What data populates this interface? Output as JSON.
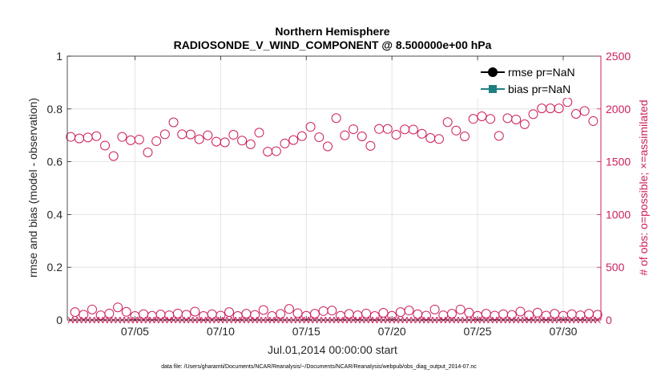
{
  "chart_data": {
    "type": "scatter",
    "title": "Northern Hemisphere",
    "subtitle": "RADIOSONDE_V_WIND_COMPONENT @ 8.500000e+00 hPa",
    "xlabel": "Jul.01,2014 00:00:00 start",
    "ylabel_left": "rmse and bias (model - observation)",
    "ylabel_right": "# of obs: o=possible; ×=assimilated",
    "footer": "data file: /Users/gharamti/Documents/NCAR/Reanalysis/~/Documents/NCAR/Reanalysis/webpub/obs_diag_output_2014-07.nc",
    "xlim": [
      0.8,
      31.95
    ],
    "ylim_left": [
      0,
      1
    ],
    "ylim_right": [
      0,
      2500
    ],
    "x_ticks": [
      4.75,
      9.75,
      14.75,
      19.75,
      24.75,
      29.75
    ],
    "x_tick_labels": [
      "07/05",
      "07/10",
      "07/15",
      "07/20",
      "07/25",
      "07/30"
    ],
    "y_ticks_left": [
      0,
      0.2,
      0.4,
      0.6,
      0.8,
      1
    ],
    "y_tick_labels_left": [
      "0",
      "0.2",
      "0.4",
      "0.6",
      "0.8",
      "1"
    ],
    "y_ticks_right": [
      0,
      500,
      1000,
      1500,
      2000,
      2500
    ],
    "y_tick_labels_right": [
      "0",
      "500",
      "1000",
      "1500",
      "2000",
      "2500"
    ],
    "legend": {
      "position": "top-right",
      "entries": [
        {
          "label": "rmse pr=NaN",
          "color": "#000000",
          "marker": "circle"
        },
        {
          "label": "bias pr=NaN",
          "color": "#1f7f7f",
          "marker": "square"
        }
      ]
    },
    "colors": {
      "left_axis": "#000000",
      "right_axis": "#cc1f5e",
      "obs": "#cc1f5e"
    },
    "series": [
      {
        "name": "possible (00Z)",
        "marker": "circle",
        "x": [
          1.0,
          2.0,
          3.0,
          4.0,
          5.0,
          6.0,
          7.0,
          8.0,
          9.0,
          10.0,
          11.0,
          12.0,
          13.0,
          14.0,
          15.0,
          16.0,
          17.0,
          18.0,
          19.0,
          20.0,
          21.0,
          22.0,
          23.0,
          24.0,
          25.0,
          26.0,
          27.0,
          28.0,
          29.0,
          30.0,
          31.0
        ],
        "values": [
          1735,
          1730,
          1653,
          1735,
          1710,
          1695,
          1873,
          1758,
          1750,
          1683,
          1700,
          1775,
          1600,
          1705,
          1830,
          1645,
          1750,
          1740,
          1810,
          1755,
          1805,
          1725,
          1875,
          1740,
          1930,
          1745,
          1900,
          1950,
          2005,
          2065,
          1980
        ]
      },
      {
        "name": "possible (12Z)",
        "marker": "circle",
        "x": [
          1.5,
          2.5,
          3.5,
          4.5,
          5.5,
          6.5,
          7.5,
          8.5,
          9.5,
          10.5,
          11.5,
          12.5,
          13.5,
          14.5,
          15.5,
          16.5,
          17.5,
          18.5,
          19.5,
          20.5,
          21.5,
          22.5,
          23.5,
          24.5,
          25.5,
          26.5,
          27.5,
          28.5,
          29.5,
          30.5,
          31.5
        ],
        "values": [
          1720,
          1742,
          1553,
          1703,
          1588,
          1760,
          1760,
          1713,
          1690,
          1755,
          1665,
          1595,
          1673,
          1742,
          1732,
          1913,
          1808,
          1650,
          1810,
          1807,
          1765,
          1715,
          1795,
          1906,
          1905,
          1912,
          1855,
          2005,
          2005,
          1953,
          1885
        ]
      },
      {
        "name": "possible (low)",
        "marker": "circle",
        "x": [
          1.25,
          2.25,
          3.25,
          4.25,
          5.25,
          6.25,
          7.25,
          8.25,
          9.25,
          10.25,
          11.25,
          12.25,
          13.25,
          14.25,
          15.25,
          16.25,
          17.25,
          18.25,
          19.25,
          20.25,
          21.25,
          22.25,
          23.25,
          24.25,
          25.25,
          26.25,
          27.25,
          28.25,
          29.25,
          30.25,
          31.25
        ],
        "values": [
          75,
          100,
          62,
          78,
          55,
          52,
          62,
          80,
          55,
          75,
          60,
          95,
          58,
          65,
          60,
          90,
          58,
          62,
          68,
          75,
          55,
          100,
          60,
          70,
          60,
          55,
          80,
          70,
          60,
          55,
          60
        ]
      },
      {
        "name": "possible (low, 12Z)",
        "marker": "circle",
        "x": [
          1.75,
          2.75,
          3.75,
          4.75,
          5.75,
          6.75,
          7.75,
          8.75,
          9.75,
          10.75,
          11.75,
          12.75,
          13.75,
          14.75,
          15.75,
          16.75,
          17.75,
          18.75,
          19.75,
          20.75,
          21.75,
          22.75,
          23.75,
          24.75,
          25.75,
          26.75,
          27.75,
          28.75,
          29.75,
          30.75,
          31.75
        ],
        "values": [
          50,
          45,
          120,
          38,
          40,
          45,
          50,
          38,
          42,
          38,
          48,
          38,
          105,
          40,
          85,
          40,
          45,
          38,
          40,
          90,
          42,
          45,
          100,
          40,
          42,
          48,
          45,
          42,
          40,
          45,
          50
        ]
      },
      {
        "name": "assimilated",
        "marker": "x",
        "x": [
          1.0,
          1.25,
          1.5,
          1.75,
          2.0,
          2.25,
          2.5,
          2.75,
          3.0,
          3.25,
          3.5,
          3.75,
          4.0,
          4.25,
          4.5,
          4.75,
          5.0,
          5.25,
          5.5,
          5.75,
          6.0,
          6.25,
          6.5,
          6.75,
          7.0,
          7.25,
          7.5,
          7.75,
          8.0,
          8.25,
          8.5,
          8.75,
          9.0,
          9.25,
          9.5,
          9.75,
          10.0,
          10.25,
          10.5,
          10.75,
          11.0,
          11.25,
          11.5,
          11.75,
          12.0,
          12.25,
          12.5,
          12.75,
          13.0,
          13.25,
          13.5,
          13.75,
          14.0,
          14.25,
          14.5,
          14.75,
          15.0,
          15.25,
          15.5,
          15.75,
          16.0,
          16.25,
          16.5,
          16.75,
          17.0,
          17.25,
          17.5,
          17.75,
          18.0,
          18.25,
          18.5,
          18.75,
          19.0,
          19.25,
          19.5,
          19.75,
          20.0,
          20.25,
          20.5,
          20.75,
          21.0,
          21.25,
          21.5,
          21.75,
          22.0,
          22.25,
          22.5,
          22.75,
          23.0,
          23.25,
          23.5,
          23.75,
          24.0,
          24.25,
          24.5,
          24.75,
          25.0,
          25.25,
          25.5,
          25.75,
          26.0,
          26.25,
          26.5,
          26.75,
          27.0,
          27.25,
          27.5,
          27.75,
          28.0,
          28.25,
          28.5,
          28.75,
          29.0,
          29.25,
          29.5,
          29.75,
          30.0,
          30.25,
          30.5,
          30.75,
          31.0,
          31.25,
          31.5,
          31.75
        ],
        "values": [
          0,
          0,
          0,
          0,
          0,
          0,
          0,
          0,
          0,
          0,
          0,
          0,
          0,
          0,
          0,
          0,
          0,
          0,
          0,
          0,
          0,
          0,
          0,
          0,
          0,
          0,
          0,
          0,
          0,
          0,
          0,
          0,
          0,
          0,
          0,
          0,
          0,
          0,
          0,
          0,
          0,
          0,
          0,
          0,
          0,
          0,
          0,
          0,
          0,
          0,
          0,
          0,
          0,
          0,
          0,
          0,
          0,
          0,
          0,
          0,
          0,
          0,
          0,
          0,
          0,
          0,
          0,
          0,
          0,
          0,
          0,
          0,
          0,
          0,
          0,
          0,
          0,
          0,
          0,
          0,
          0,
          0,
          0,
          0,
          0,
          0,
          0,
          0,
          0,
          0,
          0,
          0,
          0,
          0,
          0,
          0,
          0,
          0,
          0,
          0,
          0,
          0,
          0,
          0,
          0,
          0,
          0,
          0,
          0,
          0,
          0,
          0,
          0,
          0,
          0,
          0,
          0,
          0,
          0,
          0,
          0,
          0,
          0,
          0
        ]
      }
    ]
  }
}
